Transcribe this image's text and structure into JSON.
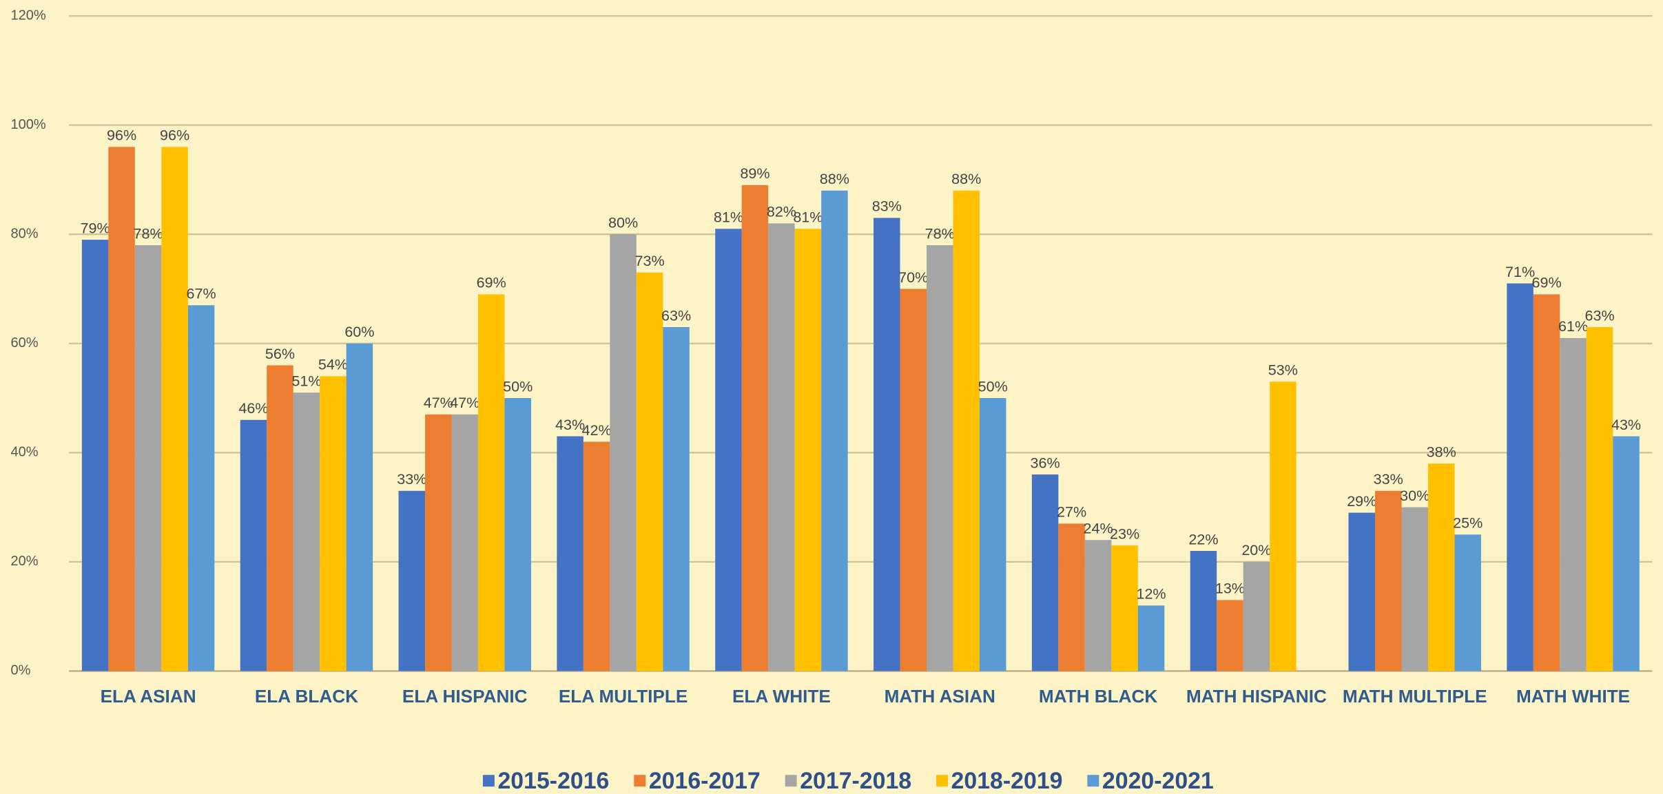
{
  "chart_data": {
    "type": "bar",
    "categories": [
      "ELA ASIAN",
      "ELA BLACK",
      "ELA HISPANIC",
      "ELA MULTIPLE",
      "ELA WHITE",
      "MATH ASIAN",
      "MATH BLACK",
      "MATH HISPANIC",
      "MATH MULTIPLE",
      "MATH WHITE"
    ],
    "series": [
      {
        "name": "2015-2016",
        "color": "#4472c4",
        "values": [
          79,
          46,
          33,
          43,
          81,
          83,
          36,
          22,
          29,
          71
        ],
        "value_labels": [
          "79%",
          "46%",
          "33%",
          "43%",
          "81%",
          "83%",
          "36%",
          "22%",
          "29%",
          "71%"
        ]
      },
      {
        "name": "2016-2017",
        "color": "#ed7d31",
        "values": [
          96,
          56,
          47,
          42,
          89,
          70,
          27,
          13,
          33,
          69
        ],
        "value_labels": [
          "96%",
          "56%",
          "47%",
          "42%",
          "89%",
          "70%",
          "27%",
          "13%",
          "33%",
          "69%"
        ]
      },
      {
        "name": "2017-2018",
        "color": "#a5a5a5",
        "values": [
          78,
          51,
          47,
          80,
          82,
          78,
          24,
          20,
          30,
          61
        ],
        "value_labels": [
          "78%",
          "51%",
          "47%",
          "80%",
          "82%",
          "78%",
          "24%",
          "20%",
          "30%",
          "61%"
        ]
      },
      {
        "name": "2018-2019",
        "color": "#ffc000",
        "values": [
          96,
          54,
          69,
          73,
          81,
          88,
          23,
          53,
          38,
          63
        ],
        "value_labels": [
          "96%",
          "54%",
          "69%",
          "73%",
          "81%",
          "88%",
          "23%",
          "53%",
          "38%",
          "63%"
        ]
      },
      {
        "name": "2020-2021",
        "color": "#5b9bd5",
        "values": [
          67,
          60,
          50,
          63,
          88,
          50,
          12,
          null,
          25,
          43
        ],
        "value_labels": [
          "67%",
          "60%",
          "50%",
          "63%",
          "88%",
          "50%",
          "12%",
          null,
          "25%",
          "43%"
        ]
      }
    ],
    "ylim": [
      0,
      120
    ],
    "yticks": [
      {
        "value": 0,
        "label": "0%"
      },
      {
        "value": 20,
        "label": "20%"
      },
      {
        "value": 40,
        "label": "40%"
      },
      {
        "value": 60,
        "label": "60%"
      },
      {
        "value": 80,
        "label": "80%"
      },
      {
        "value": 100,
        "label": "100%"
      },
      {
        "value": 120,
        "label": "120%"
      }
    ],
    "grid": true,
    "legend": "bottom"
  }
}
